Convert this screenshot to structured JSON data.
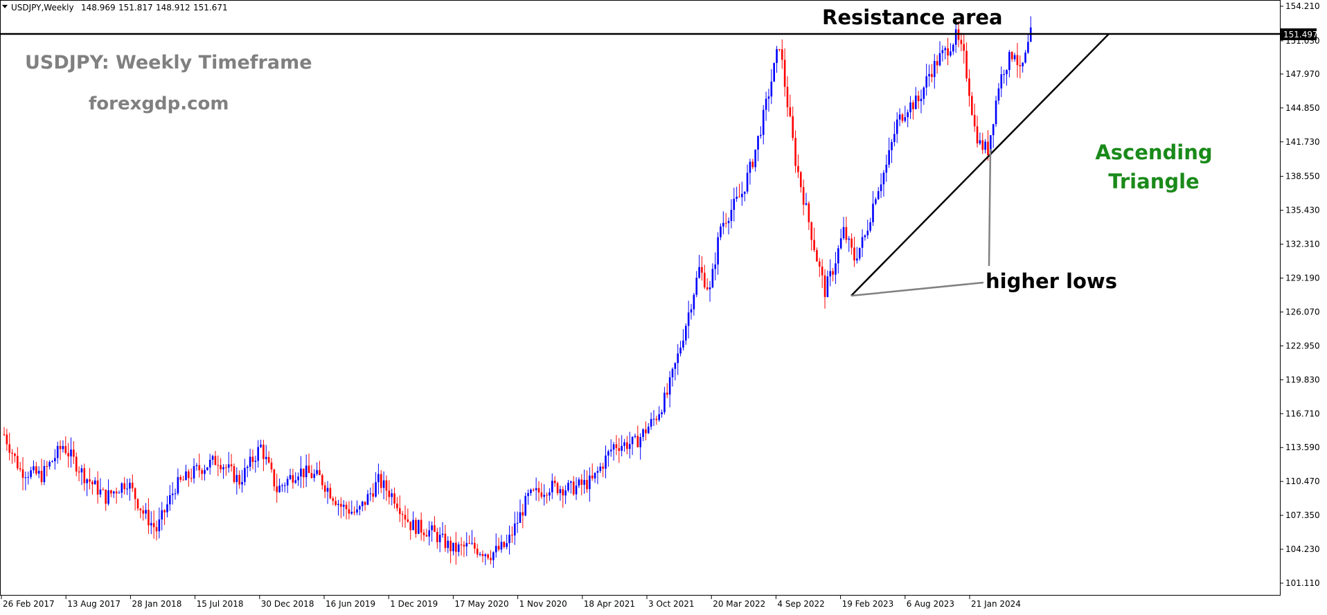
{
  "header": {
    "symbol": "USDJPY,Weekly",
    "open": "148.969",
    "high": "151.817",
    "low": "148.912",
    "close": "151.671"
  },
  "annotations": {
    "title": "USDJPY: Weekly Timeframe",
    "website": "forexgdp.com",
    "resistance": "Resistance area",
    "pattern_line1": "Ascending",
    "pattern_line2": "Triangle",
    "higher_lows": "higher lows"
  },
  "price_tag": "151.497",
  "colors": {
    "bull": "#0000ff",
    "bear": "#ff0000",
    "pattern_text": "#1a8a1a",
    "watermark": "#808080",
    "resistance_line": "#000000",
    "support_line": "#000000",
    "pointer_line": "#808080"
  },
  "chart_data": {
    "type": "candlestick",
    "symbol": "USDJPY",
    "timeframe": "Weekly",
    "y_ticks": [
      "154.210",
      "151.030",
      "147.970",
      "144.850",
      "141.730",
      "138.550",
      "135.430",
      "132.310",
      "129.190",
      "126.070",
      "122.950",
      "119.830",
      "116.710",
      "113.590",
      "110.470",
      "107.350",
      "104.230",
      "101.110"
    ],
    "x_ticks": [
      "26 Feb 2017",
      "13 Aug 2017",
      "28 Jan 2018",
      "15 Jul 2018",
      "30 Dec 2018",
      "16 Jun 2019",
      "1 Dec 2019",
      "17 May 2020",
      "1 Nov 2020",
      "18 Apr 2021",
      "3 Oct 2021",
      "20 Mar 2022",
      "4 Sep 2022",
      "19 Feb 2023",
      "6 Aug 2023",
      "21 Jan 2024"
    ],
    "ylim": [
      100.3,
      154.6
    ],
    "resistance_level": 151.497,
    "path_points": [
      [
        0,
        114.8
      ],
      [
        6,
        111.5
      ],
      [
        14,
        111.0
      ],
      [
        22,
        113.8
      ],
      [
        30,
        111.0
      ],
      [
        38,
        109.0
      ],
      [
        46,
        110.5
      ],
      [
        52,
        107.6
      ],
      [
        57,
        106.0
      ],
      [
        64,
        110.0
      ],
      [
        72,
        111.5
      ],
      [
        80,
        112.5
      ],
      [
        88,
        110.5
      ],
      [
        96,
        113.7
      ],
      [
        102,
        109.7
      ],
      [
        110,
        111.5
      ],
      [
        118,
        110.8
      ],
      [
        126,
        108.2
      ],
      [
        132,
        107.5
      ],
      [
        140,
        110.5
      ],
      [
        146,
        109.0
      ],
      [
        152,
        106.5
      ],
      [
        160,
        105.8
      ],
      [
        168,
        104.2
      ],
      [
        174,
        104.5
      ],
      [
        182,
        103.8
      ],
      [
        188,
        104.6
      ],
      [
        196,
        109.0
      ],
      [
        204,
        110.0
      ],
      [
        212,
        109.8
      ],
      [
        220,
        110.5
      ],
      [
        228,
        113.8
      ],
      [
        236,
        114.0
      ],
      [
        240,
        115.2
      ],
      [
        244,
        116.5
      ],
      [
        248,
        118.5
      ],
      [
        252,
        122.0
      ],
      [
        256,
        126.0
      ],
      [
        260,
        130.0
      ],
      [
        264,
        128.0
      ],
      [
        268,
        134.0
      ],
      [
        272,
        135.5
      ],
      [
        276,
        137.0
      ],
      [
        280,
        140.0
      ],
      [
        284,
        144.0
      ],
      [
        288,
        148.5
      ],
      [
        290,
        150.8
      ],
      [
        292,
        147.0
      ],
      [
        296,
        140.0
      ],
      [
        300,
        135.5
      ],
      [
        304,
        131.0
      ],
      [
        307,
        128.0
      ],
      [
        310,
        130.0
      ],
      [
        314,
        133.5
      ],
      [
        318,
        131.0
      ],
      [
        322,
        133.0
      ],
      [
        326,
        137.0
      ],
      [
        330,
        139.5
      ],
      [
        334,
        143.5
      ],
      [
        338,
        145.0
      ],
      [
        342,
        145.5
      ],
      [
        346,
        148.0
      ],
      [
        350,
        149.5
      ],
      [
        352,
        150.0
      ],
      [
        356,
        151.4
      ],
      [
        359,
        149.5
      ],
      [
        361,
        146.5
      ],
      [
        363,
        143.0
      ],
      [
        365,
        141.5
      ],
      [
        368,
        141.0
      ],
      [
        370,
        144.0
      ],
      [
        372,
        147.0
      ],
      [
        374,
        148.5
      ],
      [
        378,
        150.2
      ],
      [
        380,
        148.0
      ],
      [
        382,
        149.5
      ],
      [
        384,
        151.6
      ]
    ]
  }
}
